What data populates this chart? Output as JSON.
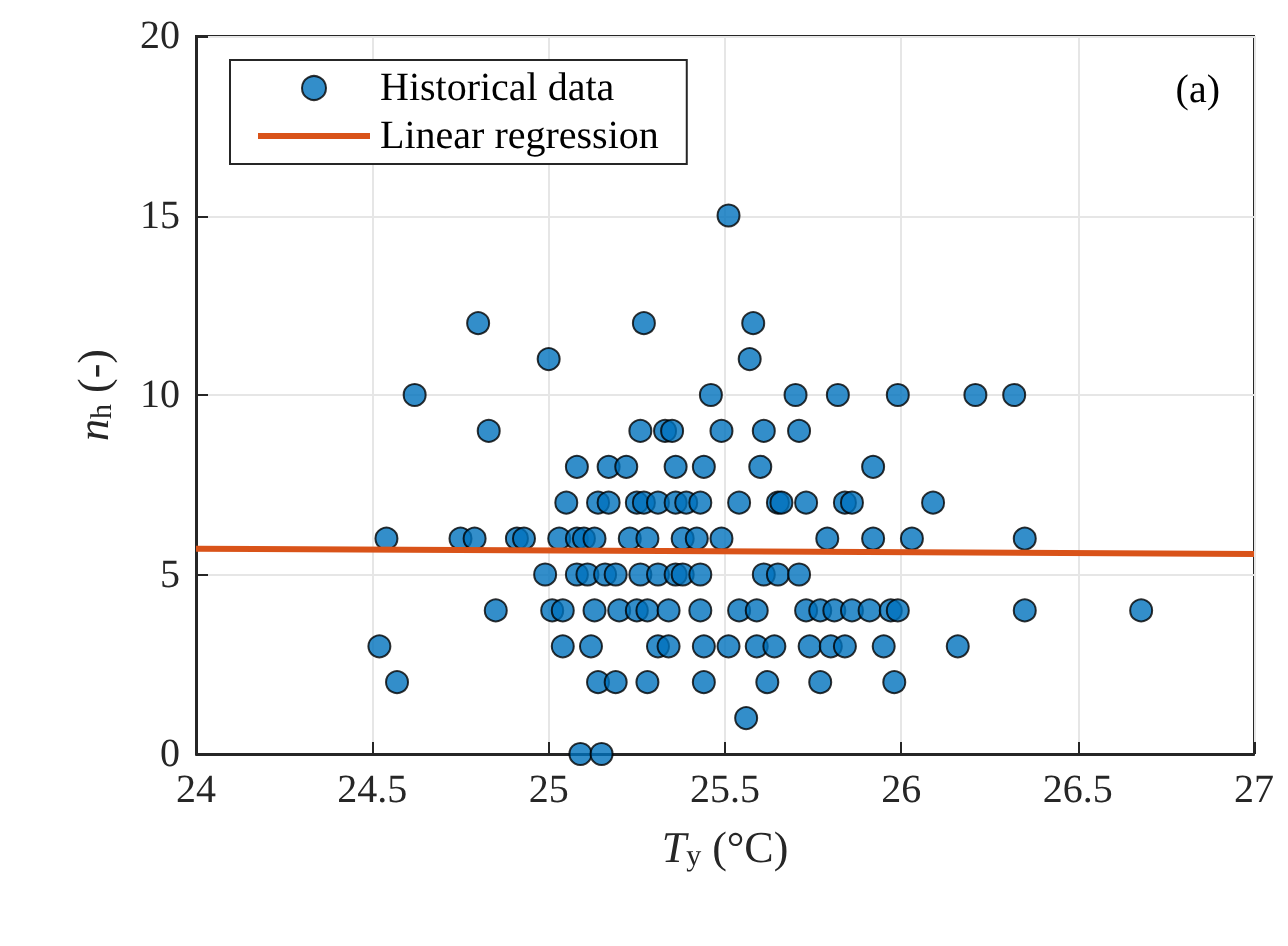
{
  "chart_data": {
    "type": "scatter",
    "xlabel": "T$_{y}$ (°C)",
    "ylabel": "n$_{h}$ (-)",
    "annotations": [
      "(a)"
    ],
    "xlim": [
      24,
      27
    ],
    "xticks": [
      24,
      24.5,
      25,
      25.5,
      26,
      26.5,
      27
    ],
    "ylim": [
      0,
      20
    ],
    "yticks": [
      0,
      5,
      10,
      15,
      20
    ],
    "grid": true,
    "legend": "top left",
    "marker": "circle",
    "series": [
      {
        "name": "Historical data",
        "color": "#0072bd",
        "x": [
          25.51,
          24.8,
          25.27,
          25.58,
          25.0,
          25.57,
          24.62,
          25.46,
          25.7,
          25.82,
          25.99,
          26.21,
          26.32,
          24.83,
          25.26,
          25.33,
          25.35,
          25.49,
          25.61,
          25.71,
          25.08,
          25.17,
          25.22,
          25.36,
          25.44,
          25.6,
          25.92,
          25.05,
          25.14,
          25.17,
          25.25,
          25.27,
          25.31,
          25.36,
          25.39,
          25.43,
          25.54,
          25.65,
          25.66,
          25.73,
          25.84,
          25.86,
          26.09,
          24.54,
          24.75,
          24.79,
          24.91,
          24.93,
          25.03,
          25.08,
          25.1,
          25.13,
          25.23,
          25.28,
          25.38,
          25.42,
          25.49,
          25.79,
          25.92,
          26.03,
          26.35,
          24.99,
          25.08,
          25.11,
          25.16,
          25.19,
          25.26,
          25.31,
          25.36,
          25.38,
          25.43,
          25.61,
          25.65,
          25.71,
          24.85,
          25.01,
          25.04,
          25.13,
          25.2,
          25.25,
          25.28,
          25.34,
          25.43,
          25.54,
          25.59,
          25.73,
          25.77,
          25.81,
          25.86,
          25.91,
          25.97,
          25.99,
          26.35,
          26.68,
          24.52,
          25.04,
          25.12,
          25.31,
          25.34,
          25.44,
          25.51,
          25.59,
          25.64,
          25.74,
          25.8,
          25.84,
          25.95,
          26.16,
          24.57,
          25.14,
          25.19,
          25.28,
          25.44,
          25.62,
          25.77,
          25.98,
          25.56,
          25.09,
          25.15
        ],
        "values": [
          15,
          12,
          12,
          12,
          11,
          11,
          10,
          10,
          10,
          10,
          10,
          10,
          10,
          9,
          9,
          9,
          9,
          9,
          9,
          9,
          8,
          8,
          8,
          8,
          8,
          8,
          8,
          7,
          7,
          7,
          7,
          7,
          7,
          7,
          7,
          7,
          7,
          7,
          7,
          7,
          7,
          7,
          7,
          6,
          6,
          6,
          6,
          6,
          6,
          6,
          6,
          6,
          6,
          6,
          6,
          6,
          6,
          6,
          6,
          6,
          6,
          5,
          5,
          5,
          5,
          5,
          5,
          5,
          5,
          5,
          5,
          5,
          5,
          5,
          4,
          4,
          4,
          4,
          4,
          4,
          4,
          4,
          4,
          4,
          4,
          4,
          4,
          4,
          4,
          4,
          4,
          4,
          4,
          4,
          3,
          3,
          3,
          3,
          3,
          3,
          3,
          3,
          3,
          3,
          3,
          3,
          3,
          3,
          2,
          2,
          2,
          2,
          2,
          2,
          2,
          2,
          1,
          0,
          0
        ]
      },
      {
        "name": "Linear regression",
        "type": "line",
        "color": "#d95319",
        "marker": "none",
        "line_style": "solid",
        "x": [
          24,
          27
        ],
        "values": [
          5.72,
          5.57
        ]
      }
    ]
  }
}
